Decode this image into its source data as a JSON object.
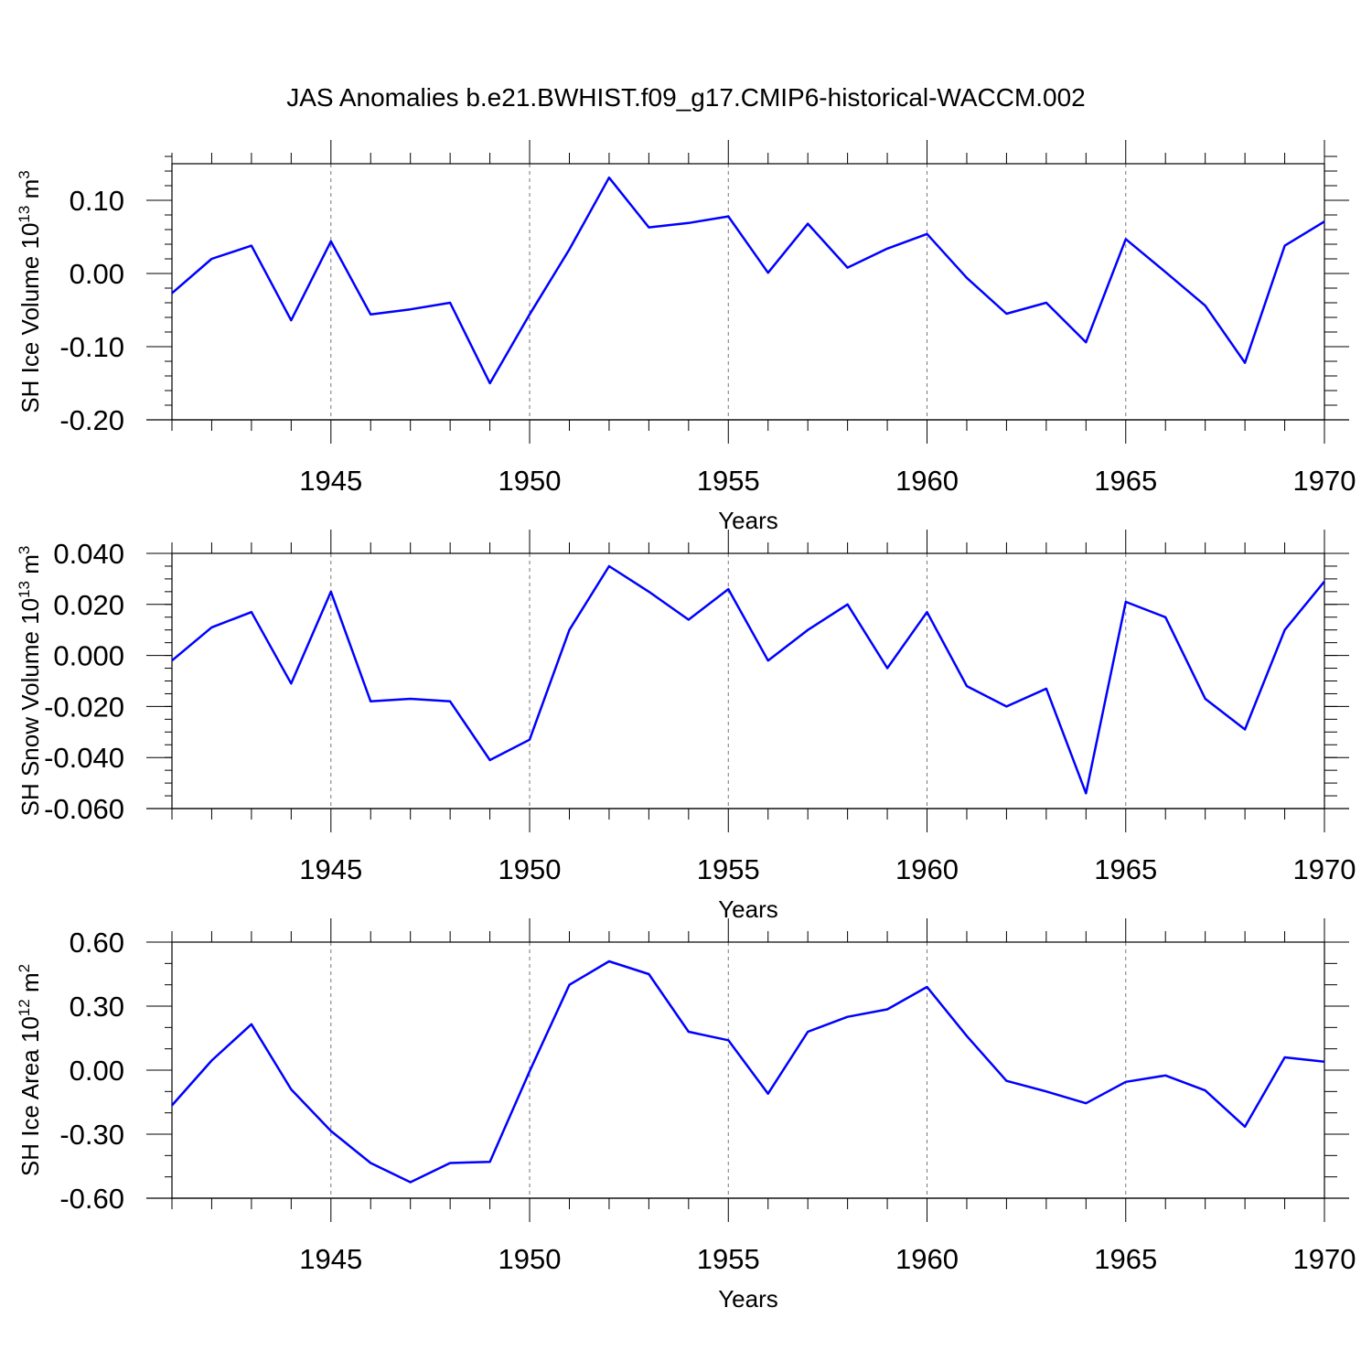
{
  "figure_title": "JAS Anomalies b.e21.BWHIST.f09_g17.CMIP6-historical-WACCM.002",
  "colors": {
    "series": "#0000ff",
    "axes": "#000000",
    "grid": "#777777"
  },
  "chart_data": [
    {
      "type": "line",
      "title": "JAS Anomalies b.e21.BWHIST.f09_g17.CMIP6-historical-WACCM.002",
      "ylabel_main": "SH Ice Volume 10",
      "ylabel_exp": "13",
      "ylabel_unit": " m",
      "ylabel_unit_exp": "3",
      "xlabel": "Years",
      "xlim": [
        1941,
        1970
      ],
      "ylim": [
        -0.2,
        0.15
      ],
      "yticks": [
        -0.2,
        -0.1,
        0.0,
        0.1
      ],
      "ytick_labels": [
        "-0.20",
        "-0.10",
        "0.00",
        "0.10"
      ],
      "yminor_step": 0.02,
      "xticks": [
        1945,
        1950,
        1955,
        1960,
        1965,
        1970
      ],
      "xtick_labels": [
        "1945",
        "1950",
        "1955",
        "1960",
        "1965",
        "1970"
      ],
      "grid": "vertical dashed at major x ticks",
      "x": [
        1941,
        1942,
        1943,
        1944,
        1945,
        1946,
        1947,
        1948,
        1949,
        1950,
        1951,
        1952,
        1953,
        1954,
        1955,
        1956,
        1957,
        1958,
        1959,
        1960,
        1961,
        1962,
        1963,
        1964,
        1965,
        1966,
        1967,
        1968,
        1969,
        1970
      ],
      "values": [
        -0.027,
        0.02,
        0.038,
        -0.064,
        0.044,
        -0.056,
        -0.049,
        -0.04,
        -0.15,
        -0.056,
        0.033,
        0.131,
        0.063,
        0.069,
        0.078,
        0.001,
        0.068,
        0.008,
        0.034,
        0.054,
        -0.006,
        -0.055,
        -0.04,
        -0.094,
        0.047,
        0.002,
        -0.044,
        -0.122,
        0.038,
        0.071
      ]
    },
    {
      "type": "line",
      "ylabel_main": "SH Snow Volume 10",
      "ylabel_exp": "13",
      "ylabel_unit": " m",
      "ylabel_unit_exp": "3",
      "xlabel": "Years",
      "xlim": [
        1941,
        1970
      ],
      "ylim": [
        -0.06,
        0.04
      ],
      "yticks": [
        -0.06,
        -0.04,
        -0.02,
        0.0,
        0.02,
        0.04
      ],
      "ytick_labels": [
        "-0.060",
        "-0.040",
        "-0.020",
        "0.000",
        "0.020",
        "0.040"
      ],
      "yminor_step": 0.005,
      "xticks": [
        1945,
        1950,
        1955,
        1960,
        1965,
        1970
      ],
      "xtick_labels": [
        "1945",
        "1950",
        "1955",
        "1960",
        "1965",
        "1970"
      ],
      "grid": "vertical dashed at major x ticks",
      "x": [
        1941,
        1942,
        1943,
        1944,
        1945,
        1946,
        1947,
        1948,
        1949,
        1950,
        1951,
        1952,
        1953,
        1954,
        1955,
        1956,
        1957,
        1958,
        1959,
        1960,
        1961,
        1962,
        1963,
        1964,
        1965,
        1966,
        1967,
        1968,
        1969,
        1970
      ],
      "values": [
        -0.002,
        0.011,
        0.017,
        -0.011,
        0.025,
        -0.018,
        -0.017,
        -0.018,
        -0.041,
        -0.033,
        0.01,
        0.035,
        0.025,
        0.014,
        0.026,
        -0.002,
        0.01,
        0.02,
        -0.005,
        0.017,
        -0.012,
        -0.02,
        -0.013,
        -0.054,
        0.021,
        0.015,
        -0.017,
        -0.029,
        0.01,
        0.029
      ]
    },
    {
      "type": "line",
      "ylabel_main": "SH Ice Area 10",
      "ylabel_exp": "12",
      "ylabel_unit": " m",
      "ylabel_unit_exp": "2",
      "xlabel": "Years",
      "xlim": [
        1941,
        1970
      ],
      "ylim": [
        -0.6,
        0.6
      ],
      "yticks": [
        -0.6,
        -0.3,
        0.0,
        0.3,
        0.6
      ],
      "ytick_labels": [
        "-0.60",
        "-0.30",
        "0.00",
        "0.30",
        "0.60"
      ],
      "yminor_step": 0.1,
      "xticks": [
        1945,
        1950,
        1955,
        1960,
        1965,
        1970
      ],
      "xtick_labels": [
        "1945",
        "1950",
        "1955",
        "1960",
        "1965",
        "1970"
      ],
      "grid": "vertical dashed at major x ticks",
      "x": [
        1941,
        1942,
        1943,
        1944,
        1945,
        1946,
        1947,
        1948,
        1949,
        1950,
        1951,
        1952,
        1953,
        1954,
        1955,
        1956,
        1957,
        1958,
        1959,
        1960,
        1961,
        1962,
        1963,
        1964,
        1965,
        1966,
        1967,
        1968,
        1969,
        1970
      ],
      "values": [
        -0.165,
        0.045,
        0.215,
        -0.09,
        -0.285,
        -0.435,
        -0.525,
        -0.435,
        -0.43,
        -0.005,
        0.4,
        0.51,
        0.45,
        0.18,
        0.14,
        -0.11,
        0.18,
        0.25,
        0.285,
        0.39,
        0.16,
        -0.05,
        -0.1,
        -0.155,
        -0.055,
        -0.025,
        -0.095,
        -0.265,
        0.06,
        0.04
      ]
    }
  ]
}
